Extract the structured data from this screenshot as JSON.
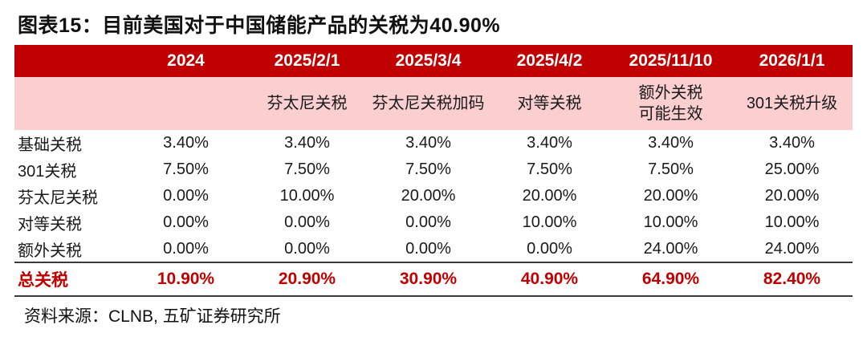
{
  "title": "图表15：目前美国对于中国储能产品的关税为40.90%",
  "source": "资料来源：CLNB, 五矿证券研究所",
  "colors": {
    "header_bg": "#C00000",
    "subheader_bg": "#FBCED0",
    "total_text": "#C00000",
    "rule_line": "#3b3b3b"
  },
  "chart_data": {
    "type": "table",
    "title": "图表15：目前美国对于中国储能产品的关税为40.90%",
    "date_headers": [
      "",
      "2024",
      "2025/2/1",
      "2025/3/4",
      "2025/4/2",
      "2025/11/10",
      "2026/1/1"
    ],
    "event_headers": [
      "",
      "",
      "芬太尼关税",
      "芬太尼关税加码",
      "对等关税",
      "额外关税\n可能生效",
      "301关税升级"
    ],
    "rows": [
      {
        "label": "基础关税",
        "values": [
          "3.40%",
          "3.40%",
          "3.40%",
          "3.40%",
          "3.40%",
          "3.40%"
        ]
      },
      {
        "label": "301关税",
        "values": [
          "7.50%",
          "7.50%",
          "7.50%",
          "7.50%",
          "7.50%",
          "25.00%"
        ]
      },
      {
        "label": "芬太尼关税",
        "values": [
          "0.00%",
          "10.00%",
          "20.00%",
          "20.00%",
          "20.00%",
          "20.00%"
        ]
      },
      {
        "label": "对等关税",
        "values": [
          "0.00%",
          "0.00%",
          "0.00%",
          "10.00%",
          "10.00%",
          "10.00%"
        ]
      },
      {
        "label": "额外关税",
        "values": [
          "0.00%",
          "0.00%",
          "0.00%",
          "0.00%",
          "24.00%",
          "24.00%"
        ]
      }
    ],
    "total_row": {
      "label": "总关税",
      "values": [
        "10.90%",
        "20.90%",
        "30.90%",
        "40.90%",
        "64.90%",
        "82.40%"
      ]
    }
  }
}
